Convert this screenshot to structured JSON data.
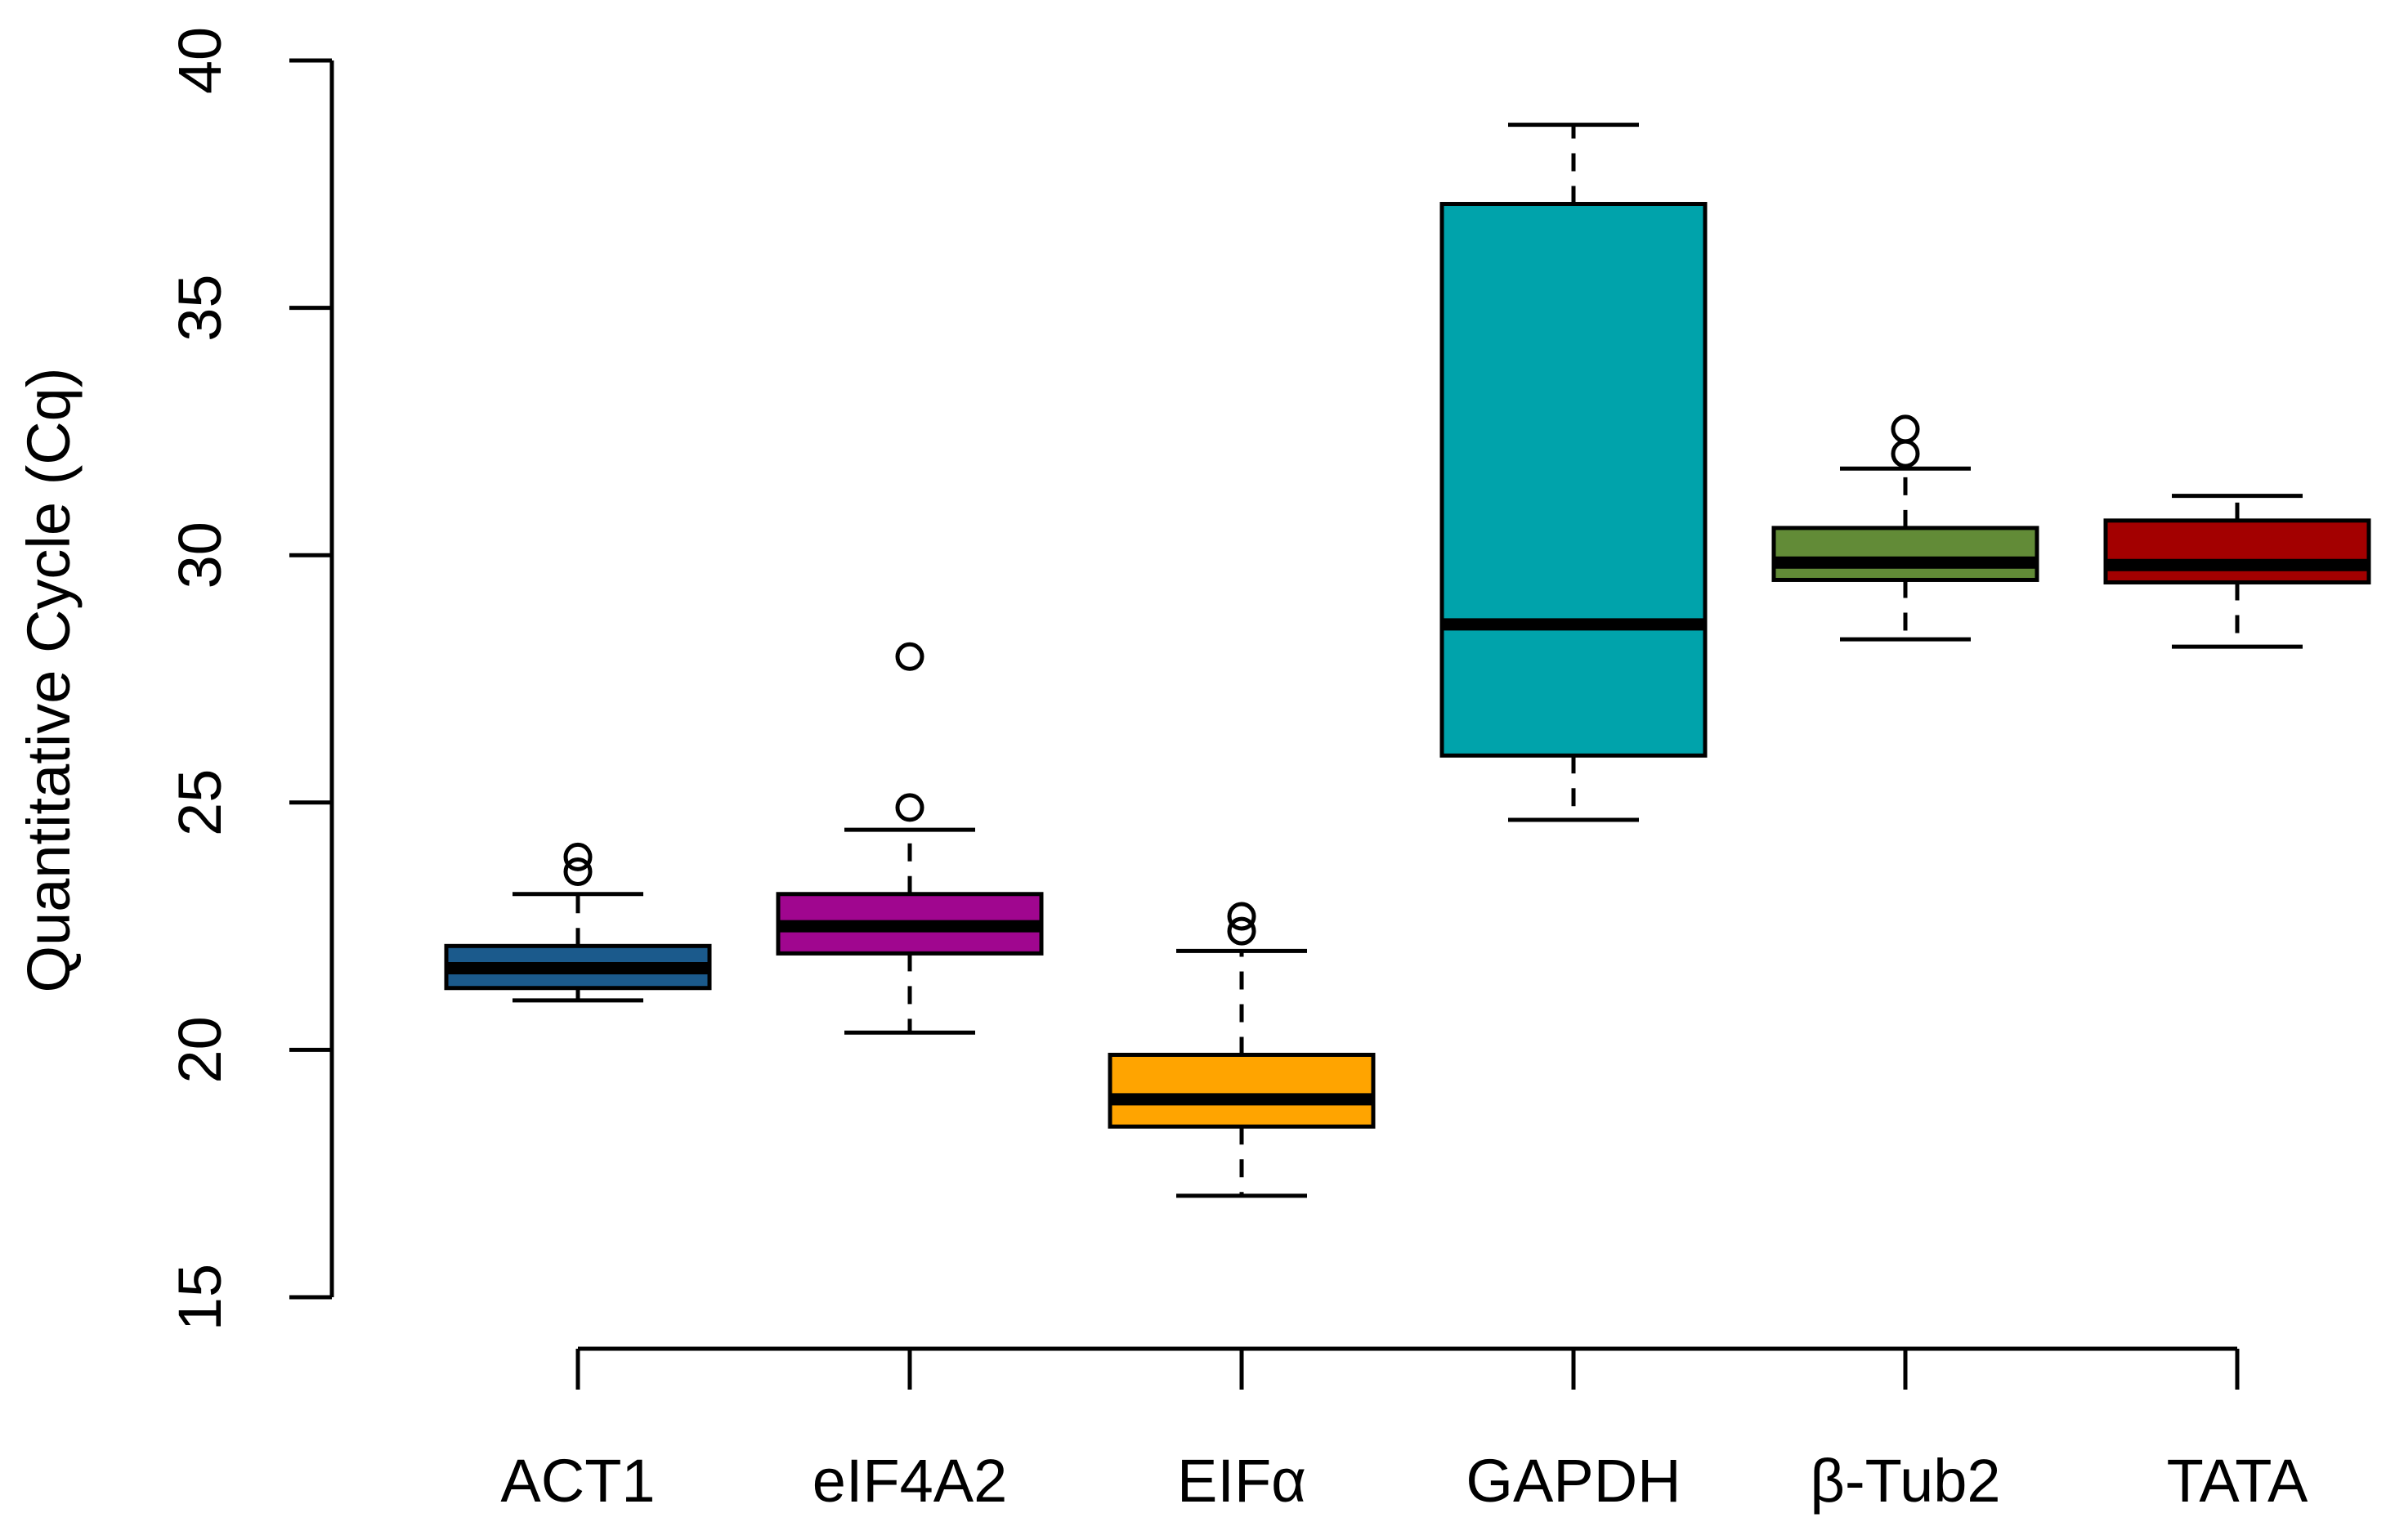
{
  "chart_data": {
    "type": "boxplot",
    "title": "",
    "xlabel": "",
    "ylabel": "Quantitative Cycle (Cq)",
    "ylim": [
      15,
      40
    ],
    "yticks": [
      15,
      20,
      25,
      30,
      35,
      40
    ],
    "grid": false,
    "legend": "none",
    "categories": [
      "ACT1",
      "eIF4A2",
      "EIFα",
      "GAPDH",
      "β-Tub2",
      "TATA"
    ],
    "boxes": [
      {
        "name": "ACT1",
        "color": "#1b5a8c",
        "whisker_low": 21.0,
        "q1": 21.25,
        "median": 21.65,
        "q3": 22.1,
        "whisker_high": 23.15,
        "outliers": [
          23.6,
          23.9
        ]
      },
      {
        "name": "eIF4A2",
        "color": "#a0068f",
        "whisker_low": 20.35,
        "q1": 21.95,
        "median": 22.5,
        "q3": 23.15,
        "whisker_high": 24.45,
        "outliers": [
          24.9,
          27.95
        ]
      },
      {
        "name": "EIFα",
        "color": "#ffa400",
        "whisker_low": 17.05,
        "q1": 18.45,
        "median": 19.0,
        "q3": 19.9,
        "whisker_high": 22.0,
        "outliers": [
          22.4,
          22.7
        ]
      },
      {
        "name": "GAPDH",
        "color": "#00a3ab",
        "whisker_low": 24.65,
        "q1": 25.95,
        "median": 28.6,
        "q3": 37.1,
        "whisker_high": 38.7,
        "outliers": []
      },
      {
        "name": "β-Tub2",
        "color": "#628b37",
        "whisker_low": 28.3,
        "q1": 29.5,
        "median": 29.85,
        "q3": 30.55,
        "whisker_high": 31.75,
        "outliers": [
          32.05,
          32.55
        ]
      },
      {
        "name": "TATA",
        "color": "#a30000",
        "whisker_low": 28.15,
        "q1": 29.45,
        "median": 29.8,
        "q3": 30.7,
        "whisker_high": 31.2,
        "outliers": []
      }
    ]
  }
}
